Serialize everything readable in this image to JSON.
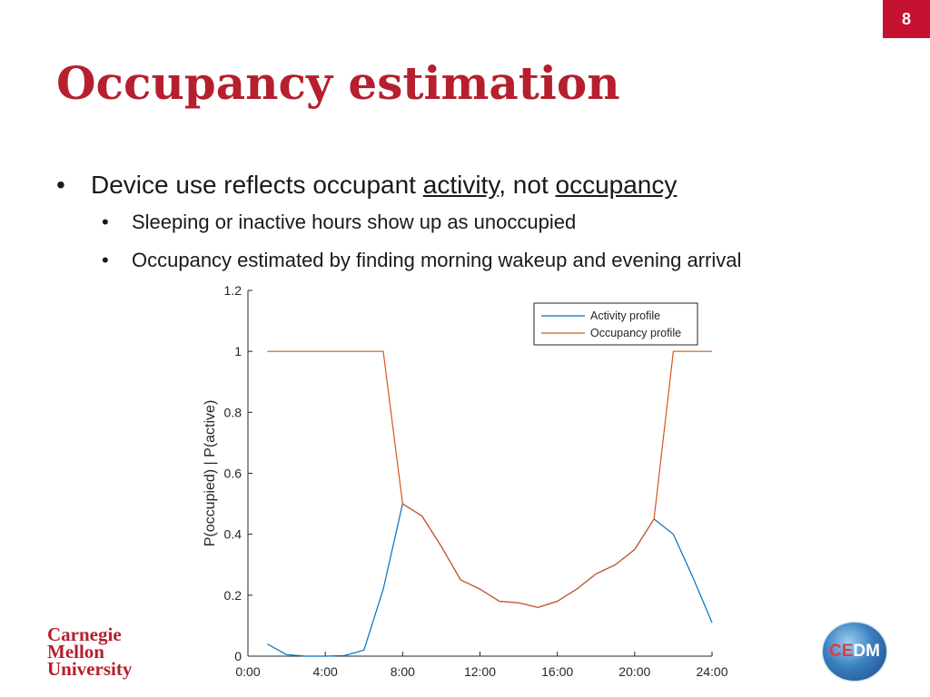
{
  "page_number": "8",
  "title": "Occupancy estimation",
  "bullets": {
    "main": {
      "pre": "Device use reflects occupant ",
      "u1": "activity",
      "mid": ", not ",
      "u2": "occupancy"
    },
    "sub": [
      "Sleeping or inactive hours show up as unoccupied",
      "Occupancy estimated by finding morning wakeup and evening arrival"
    ]
  },
  "logos": {
    "cmu": [
      "Carnegie",
      "Mellon",
      "University"
    ],
    "cedm_c": "CE",
    "cedm_rest": "DM"
  },
  "chart_data": {
    "type": "line",
    "ylabel": "P(occupied) | P(active)",
    "xlabel": "",
    "xlim": [
      0,
      24
    ],
    "ylim": [
      0,
      1.2
    ],
    "xticks": [
      0,
      4,
      8,
      12,
      16,
      20,
      24
    ],
    "xtick_labels": [
      "0:00",
      "4:00",
      "8:00",
      "12:00",
      "16:00",
      "20:00",
      "24:00"
    ],
    "yticks": [
      0,
      0.2,
      0.4,
      0.6,
      0.8,
      1,
      1.2
    ],
    "ytick_labels": [
      "0",
      "0.2",
      "0.4",
      "0.6",
      "0.8",
      "1",
      "1.2"
    ],
    "legend_position": "top-right",
    "series": [
      {
        "name": "Activity profile",
        "color": "#0072bd",
        "x": [
          1,
          2,
          3,
          4,
          5,
          6,
          7,
          8,
          9,
          10,
          11,
          12,
          13,
          14,
          15,
          16,
          17,
          18,
          19,
          20,
          21,
          22,
          23,
          24
        ],
        "y": [
          0.04,
          0.005,
          0.0,
          0.0,
          0.002,
          0.02,
          0.22,
          0.5,
          0.46,
          0.36,
          0.25,
          0.22,
          0.18,
          0.175,
          0.16,
          0.18,
          0.22,
          0.27,
          0.3,
          0.35,
          0.45,
          0.4,
          0.26,
          0.11
        ]
      },
      {
        "name": "Occupancy profile",
        "color": "#d95319",
        "x": [
          1,
          2,
          3,
          4,
          5,
          6,
          7,
          8,
          9,
          10,
          11,
          12,
          13,
          14,
          15,
          16,
          17,
          18,
          19,
          20,
          21,
          22,
          23,
          24
        ],
        "y": [
          1,
          1,
          1,
          1,
          1,
          1,
          1,
          0.5,
          0.46,
          0.36,
          0.25,
          0.22,
          0.18,
          0.175,
          0.16,
          0.18,
          0.22,
          0.27,
          0.3,
          0.35,
          0.45,
          1,
          1,
          1
        ]
      }
    ]
  }
}
